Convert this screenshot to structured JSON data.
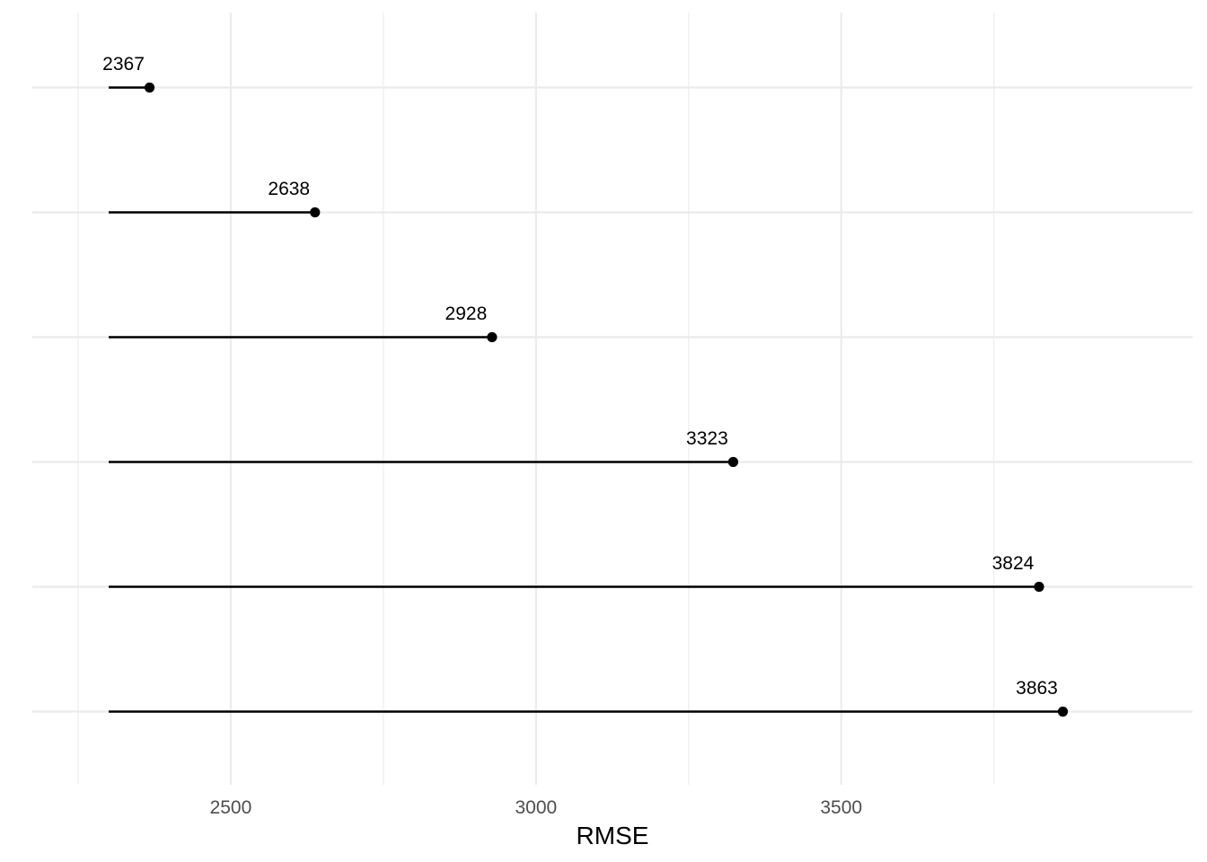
{
  "chart_data": {
    "type": "lollipop",
    "orientation": "horizontal",
    "xlabel": "RMSE",
    "ylabel": "",
    "title": "",
    "xlim": [
      2250,
      3900
    ],
    "baseline": 2300,
    "x_ticks": [
      2500,
      3000,
      3500
    ],
    "x_tick_labels": [
      "2500",
      "3000",
      "3500"
    ],
    "minor_ticks": [
      2250,
      2750,
      3250,
      3750
    ],
    "categories": [
      "",
      "",
      "",
      "",
      "",
      ""
    ],
    "values": [
      2367,
      2638,
      2928,
      3323,
      3824,
      3863
    ],
    "data_labels": [
      "2367",
      "2638",
      "2928",
      "3323",
      "3824",
      "3863"
    ],
    "grid": true,
    "legend": "none",
    "colors": {
      "stem": "#000000",
      "point": "#000000",
      "grid": "#ebebeb"
    }
  }
}
